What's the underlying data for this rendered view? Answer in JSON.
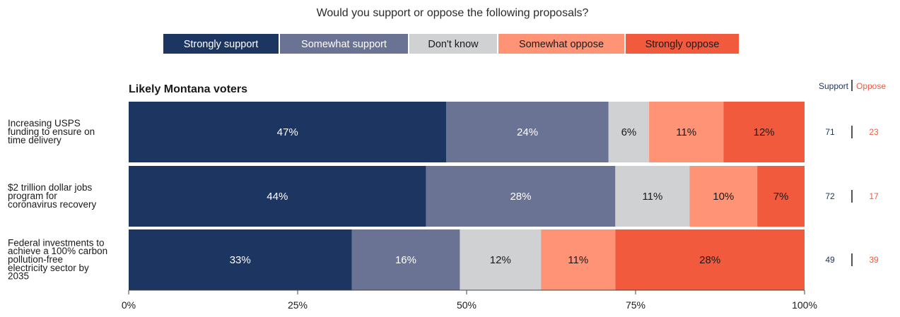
{
  "chart_data": {
    "type": "bar",
    "orientation": "horizontal",
    "stacked": true,
    "title": "Would you support or oppose the following proposals?",
    "subtitle": "Likely Montana voters",
    "categories": [
      "Increasing USPS funding to ensure on time delivery",
      "$2 trillion dollar jobs program for coronavirus recovery",
      "Federal investments to achieve a 100% carbon pollution-free electricity sector by 2035"
    ],
    "category_lines": [
      [
        "Increasing USPS",
        "funding to ensure on",
        "time delivery"
      ],
      [
        "$2 trillion dollar jobs",
        "program for",
        "coronavirus recovery"
      ],
      [
        "Federal investments to",
        "achieve a 100% carbon",
        "pollution-free",
        "electricity sector by",
        "2035"
      ]
    ],
    "series": [
      {
        "name": "Strongly support",
        "color": "#1c3661",
        "label_color": "#ffffff",
        "values": [
          47,
          44,
          33
        ]
      },
      {
        "name": "Somewhat support",
        "color": "#6b7394",
        "label_color": "#ffffff",
        "values": [
          24,
          28,
          16
        ]
      },
      {
        "name": "Don't know",
        "color": "#d0d1d3",
        "label_color": "#1a1a1a",
        "values": [
          6,
          11,
          12
        ]
      },
      {
        "name": "Somewhat oppose",
        "color": "#fe9375",
        "label_color": "#1a1a1a",
        "values": [
          11,
          10,
          11
        ]
      },
      {
        "name": "Strongly oppose",
        "color": "#f15a3c",
        "label_color": "#1a1a1a",
        "values": [
          12,
          7,
          28
        ]
      }
    ],
    "bar_labels": [
      [
        "47%",
        "24%",
        "6%",
        "11%",
        "12%"
      ],
      [
        "44%",
        "28%",
        "11%",
        "10%",
        "7%"
      ],
      [
        "33%",
        "16%",
        "12%",
        "11%",
        "28%"
      ]
    ],
    "xlim": [
      0,
      100
    ],
    "xticks": [
      0,
      25,
      50,
      75,
      100
    ],
    "xtick_labels": [
      "0%",
      "25%",
      "50%",
      "75%",
      "100%"
    ],
    "legend_position": "top",
    "side_table": {
      "headers": {
        "support": "Support",
        "separator": "|",
        "oppose": "Oppose"
      },
      "support": [
        "71",
        "72",
        "49"
      ],
      "oppose": [
        "23",
        "17",
        "39"
      ],
      "support_color": "#1c3661",
      "oppose_color": "#f15a3c"
    }
  }
}
